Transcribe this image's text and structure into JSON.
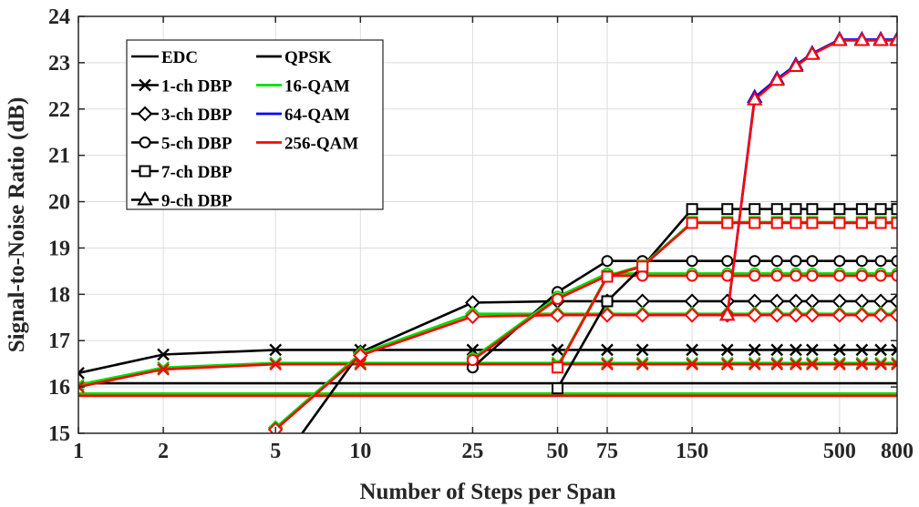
{
  "chart_data": {
    "type": "line",
    "title": "",
    "xlabel": "Number of Steps per Span",
    "ylabel": "Signal-to-Noise Ratio (dB)",
    "xscale": "log",
    "xlim": [
      1,
      800
    ],
    "ylim": [
      15,
      24
    ],
    "xticks": [
      1,
      2,
      5,
      10,
      25,
      50,
      75,
      150,
      500,
      800
    ],
    "xtick_labels": [
      "1",
      "2",
      "5",
      "10",
      "25",
      "50",
      "75",
      "150",
      "500",
      "800"
    ],
    "yticks": [
      15,
      16,
      17,
      18,
      19,
      20,
      21,
      22,
      23,
      24
    ],
    "ytick_labels": [
      "15",
      "16",
      "17",
      "18",
      "19",
      "20",
      "21",
      "22",
      "23",
      "24"
    ],
    "grid": true,
    "legend_placement": "top-left",
    "legend_method": [
      {
        "label": "EDC",
        "marker": "none"
      },
      {
        "label": "1-ch DBP",
        "marker": "x"
      },
      {
        "label": "3-ch DBP",
        "marker": "diamond"
      },
      {
        "label": "5-ch DBP",
        "marker": "circle"
      },
      {
        "label": "7-ch DBP",
        "marker": "square"
      },
      {
        "label": "9-ch DBP",
        "marker": "triangle"
      }
    ],
    "legend_format": [
      {
        "label": "QPSK",
        "color": "#000000"
      },
      {
        "label": "16-QAM",
        "color": "#00dd00"
      },
      {
        "label": "64-QAM",
        "color": "#0000ff"
      },
      {
        "label": "256-QAM",
        "color": "#ff0000"
      }
    ],
    "x": [
      1,
      2,
      5,
      10,
      25,
      50,
      75,
      100,
      150,
      200,
      250,
      300,
      350,
      400,
      500,
      600,
      700,
      800
    ],
    "series": [
      {
        "method": "EDC",
        "format": "QPSK",
        "marker": "none",
        "color": "#000000",
        "values": [
          16.08,
          16.08,
          16.08,
          16.08,
          16.08,
          16.08,
          16.08,
          16.08,
          16.08,
          16.08,
          16.08,
          16.08,
          16.08,
          16.08,
          16.08,
          16.08,
          16.08,
          16.08
        ]
      },
      {
        "method": "EDC",
        "format": "16-QAM",
        "marker": "none",
        "color": "#00dd00",
        "values": [
          15.86,
          15.86,
          15.86,
          15.86,
          15.86,
          15.86,
          15.86,
          15.86,
          15.86,
          15.86,
          15.86,
          15.86,
          15.86,
          15.86,
          15.86,
          15.86,
          15.86,
          15.86
        ]
      },
      {
        "method": "EDC",
        "format": "256-QAM",
        "marker": "none",
        "color": "#ff0000",
        "values": [
          15.81,
          15.81,
          15.81,
          15.81,
          15.81,
          15.81,
          15.81,
          15.81,
          15.81,
          15.81,
          15.81,
          15.81,
          15.81,
          15.81,
          15.81,
          15.81,
          15.81,
          15.81
        ]
      },
      {
        "method": "1-ch DBP",
        "format": "QPSK",
        "marker": "x",
        "color": "#000000",
        "values": [
          16.3,
          16.7,
          16.8,
          16.8,
          16.8,
          16.8,
          16.8,
          16.8,
          16.8,
          16.8,
          16.8,
          16.8,
          16.8,
          16.8,
          16.8,
          16.8,
          16.8,
          16.8
        ]
      },
      {
        "method": "1-ch DBP",
        "format": "16-QAM",
        "marker": "x",
        "color": "#00dd00",
        "values": [
          16.05,
          16.42,
          16.52,
          16.52,
          16.52,
          16.52,
          16.52,
          16.52,
          16.52,
          16.52,
          16.52,
          16.52,
          16.52,
          16.52,
          16.52,
          16.52,
          16.52,
          16.52
        ]
      },
      {
        "method": "1-ch DBP",
        "format": "256-QAM",
        "marker": "x",
        "color": "#ff0000",
        "values": [
          16.0,
          16.38,
          16.49,
          16.49,
          16.49,
          16.49,
          16.49,
          16.49,
          16.49,
          16.49,
          16.49,
          16.49,
          16.49,
          16.49,
          16.49,
          16.49,
          16.49,
          16.49
        ]
      },
      {
        "method": "3-ch DBP",
        "format": "QPSK",
        "marker": "diamond",
        "color": "#000000",
        "values": [
          null,
          null,
          14.2,
          16.75,
          17.82,
          17.85,
          17.85,
          17.85,
          17.85,
          17.85,
          17.85,
          17.85,
          17.85,
          17.85,
          17.85,
          17.85,
          17.85,
          17.85
        ]
      },
      {
        "method": "3-ch DBP",
        "format": "16-QAM",
        "marker": "diamond",
        "color": "#00dd00",
        "values": [
          null,
          null,
          15.12,
          16.72,
          17.58,
          17.58,
          17.58,
          17.58,
          17.58,
          17.58,
          17.58,
          17.58,
          17.58,
          17.58,
          17.58,
          17.58,
          17.58,
          17.58
        ]
      },
      {
        "method": "3-ch DBP",
        "format": "256-QAM",
        "marker": "diamond",
        "color": "#ff0000",
        "values": [
          null,
          null,
          15.08,
          16.68,
          17.52,
          17.55,
          17.55,
          17.55,
          17.55,
          17.55,
          17.55,
          17.55,
          17.55,
          17.55,
          17.55,
          17.55,
          17.55,
          17.55
        ]
      },
      {
        "method": "5-ch DBP",
        "format": "QPSK",
        "marker": "circle",
        "color": "#000000",
        "values": [
          null,
          null,
          null,
          null,
          16.42,
          18.05,
          18.72,
          18.72,
          18.72,
          18.72,
          18.72,
          18.72,
          18.72,
          18.72,
          18.72,
          18.72,
          18.72,
          18.72
        ]
      },
      {
        "method": "5-ch DBP",
        "format": "16-QAM",
        "marker": "circle",
        "color": "#00dd00",
        "values": [
          null,
          null,
          null,
          null,
          16.62,
          17.95,
          18.45,
          18.45,
          18.45,
          18.45,
          18.45,
          18.45,
          18.45,
          18.45,
          18.45,
          18.45,
          18.45,
          18.45
        ]
      },
      {
        "method": "5-ch DBP",
        "format": "256-QAM",
        "marker": "circle",
        "color": "#ff0000",
        "values": [
          null,
          null,
          null,
          null,
          16.58,
          17.9,
          18.4,
          18.4,
          18.4,
          18.4,
          18.4,
          18.4,
          18.4,
          18.4,
          18.4,
          18.4,
          18.4,
          18.4
        ]
      },
      {
        "method": "7-ch DBP",
        "format": "QPSK",
        "marker": "square",
        "color": "#000000",
        "values": [
          null,
          null,
          null,
          null,
          null,
          15.97,
          17.85,
          18.6,
          19.84,
          19.84,
          19.84,
          19.84,
          19.84,
          19.84,
          19.84,
          19.84,
          19.84,
          19.84
        ]
      },
      {
        "method": "7-ch DBP",
        "format": "16-QAM",
        "marker": "square",
        "color": "#00dd00",
        "values": [
          null,
          null,
          null,
          null,
          null,
          16.45,
          18.4,
          18.62,
          19.56,
          19.56,
          19.56,
          19.56,
          19.56,
          19.56,
          19.56,
          19.56,
          19.56,
          19.56
        ]
      },
      {
        "method": "7-ch DBP",
        "format": "256-QAM",
        "marker": "square",
        "color": "#ff0000",
        "values": [
          null,
          null,
          null,
          null,
          null,
          16.42,
          18.38,
          18.6,
          19.54,
          19.54,
          19.54,
          19.54,
          19.54,
          19.54,
          19.54,
          19.54,
          19.54,
          19.54
        ]
      },
      {
        "method": "9-ch DBP",
        "format": "64-QAM",
        "marker": "triangle",
        "color": "#0000ff",
        "values": [
          null,
          null,
          null,
          null,
          null,
          null,
          null,
          null,
          null,
          17.55,
          22.25,
          22.65,
          22.95,
          23.2,
          23.5,
          23.5,
          23.5,
          23.5
        ]
      },
      {
        "method": "9-ch DBP",
        "format": "256-QAM",
        "marker": "triangle",
        "color": "#ff0000",
        "values": [
          null,
          null,
          null,
          null,
          null,
          null,
          null,
          null,
          null,
          17.55,
          22.2,
          22.62,
          22.92,
          23.18,
          23.48,
          23.48,
          23.48,
          23.48
        ]
      }
    ]
  }
}
